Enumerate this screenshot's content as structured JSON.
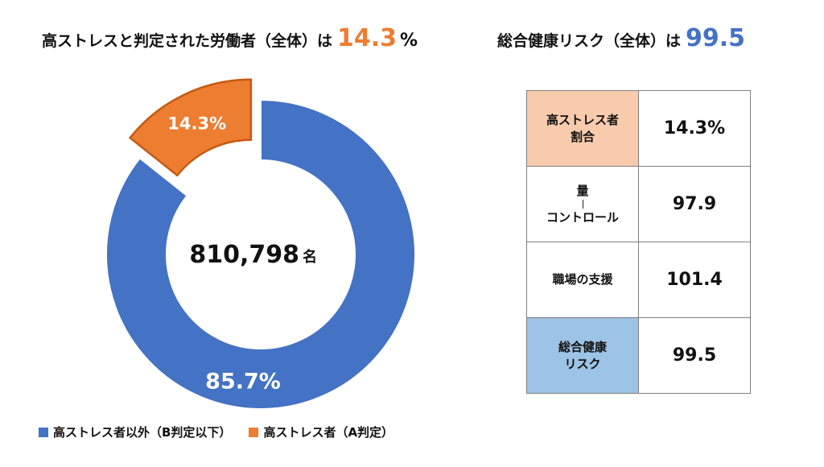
{
  "headline_left": {
    "text": "高ストレスと判定された労働者（全体）は",
    "value": "14.3",
    "unit": "%"
  },
  "headline_right": {
    "text": "総合健康リスク（全体）は",
    "value": "99.5"
  },
  "colors": {
    "blue": "#4472C4",
    "orange": "#ED7D31",
    "orange_light": "#F8CBAD",
    "blue_light": "#9DC3E6"
  },
  "chart_data": {
    "type": "pie",
    "title": "",
    "center_label": {
      "value": "810,798",
      "unit": "名"
    },
    "slices": [
      {
        "name": "高ストレス者以外（B判定以下）",
        "value": 85.7,
        "label": "85.7%",
        "color": "#4472C4"
      },
      {
        "name": "高ストレス者（A判定）",
        "value": 14.3,
        "label": "14.3%",
        "color": "#ED7D31",
        "exploded": true
      }
    ],
    "legend_position": "bottom"
  },
  "table": {
    "rows": [
      {
        "label": "高ストレス者\n割合",
        "value": "14.3%",
        "bg": "#F8CBAD"
      },
      {
        "label_top": "量",
        "label_bottom": "コントロール",
        "value": "97.9",
        "bg": "#ffffff"
      },
      {
        "label": "職場の支援",
        "value": "101.4",
        "bg": "#ffffff"
      },
      {
        "label": "総合健康\nリスク",
        "value": "99.5",
        "bg": "#9DC3E6"
      }
    ]
  }
}
